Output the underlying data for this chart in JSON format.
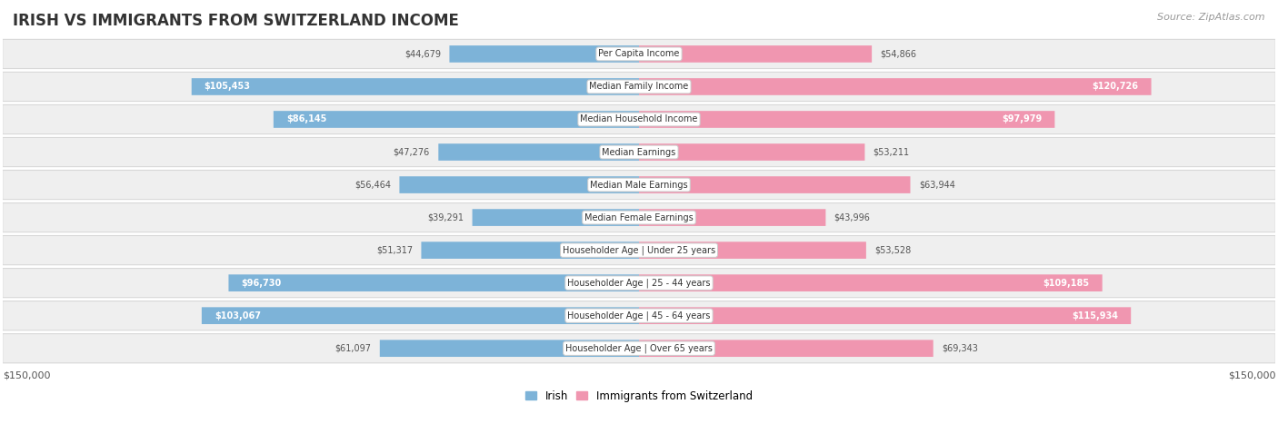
{
  "title": "IRISH VS IMMIGRANTS FROM SWITZERLAND INCOME",
  "source": "Source: ZipAtlas.com",
  "categories": [
    "Per Capita Income",
    "Median Family Income",
    "Median Household Income",
    "Median Earnings",
    "Median Male Earnings",
    "Median Female Earnings",
    "Householder Age | Under 25 years",
    "Householder Age | 25 - 44 years",
    "Householder Age | 45 - 64 years",
    "Householder Age | Over 65 years"
  ],
  "irish_values": [
    44679,
    105453,
    86145,
    47276,
    56464,
    39291,
    51317,
    96730,
    103067,
    61097
  ],
  "swiss_values": [
    54866,
    120726,
    97979,
    53211,
    63944,
    43996,
    53528,
    109185,
    115934,
    69343
  ],
  "irish_color": "#7db3d8",
  "swiss_color": "#f096b0",
  "irish_inside_color": "#ffffff",
  "irish_outside_color": "#555555",
  "swiss_inside_color": "#ffffff",
  "swiss_outside_color": "#555555",
  "max_value": 150000,
  "background_color": "#ffffff",
  "row_bg_color": "#efefef",
  "row_border_color": "#d8d8d8",
  "legend_irish_color": "#7db3d8",
  "legend_swiss_color": "#f096b0",
  "irish_inside_threshold": 75000,
  "swiss_inside_threshold": 75000,
  "title_color": "#333333",
  "source_color": "#999999"
}
